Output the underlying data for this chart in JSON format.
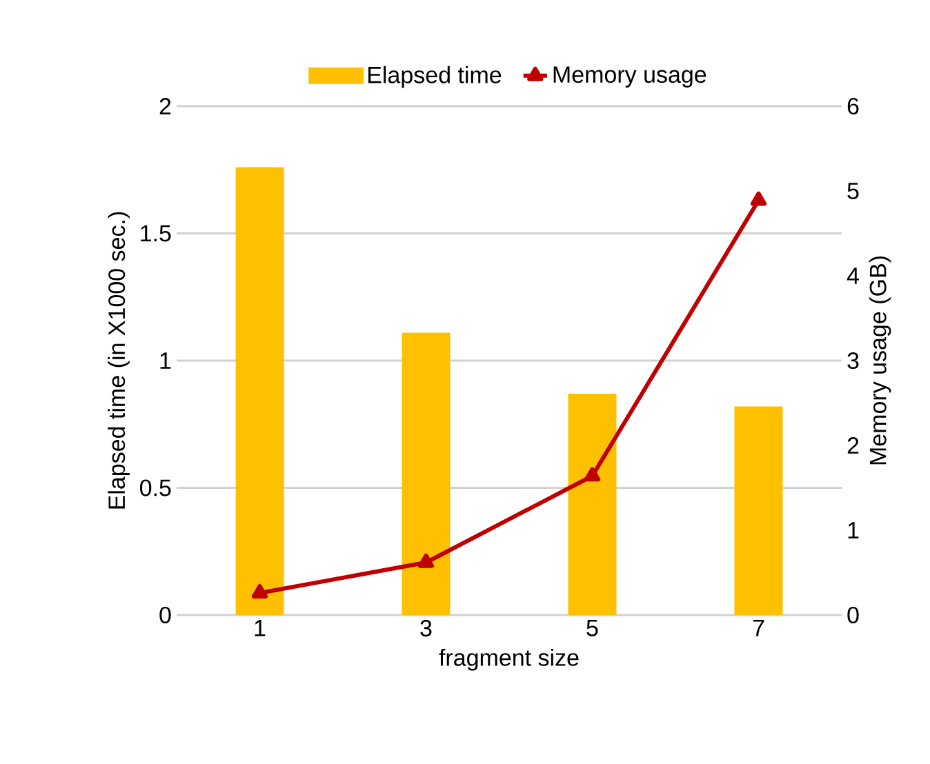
{
  "chart_data": {
    "type": "bar",
    "xlabel": "fragment size",
    "ylabel": "Elapsed time (in X1000 sec.)",
    "y2label": "Memory usage (GB)",
    "categories": [
      "1",
      "3",
      "5",
      "7"
    ],
    "series": [
      {
        "name": "Elapsed time",
        "color": "#ffc000",
        "values": [
          1.76,
          1.11,
          0.87,
          0.82
        ]
      },
      {
        "name": "Memory usage",
        "type": "line",
        "axis": "y2",
        "color": "#c00000",
        "marker": "triangle",
        "values": [
          0.26,
          0.62,
          1.64,
          4.89
        ]
      }
    ],
    "ylim": [
      0,
      2
    ],
    "yticks": [
      0,
      0.5,
      1,
      1.5,
      2
    ],
    "y2lim": [
      0,
      6
    ],
    "y2ticks": [
      0,
      1,
      2,
      3,
      4,
      5,
      6
    ],
    "grid": "y",
    "legend": "top"
  }
}
